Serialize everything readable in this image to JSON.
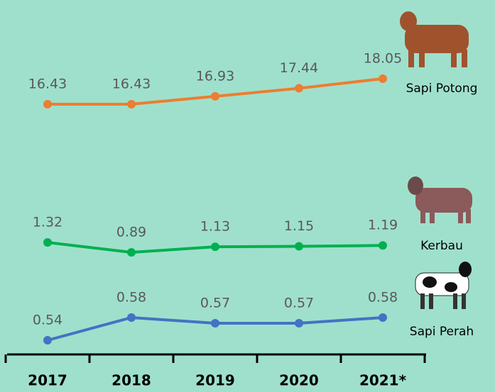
{
  "chart_data": {
    "type": "line",
    "categories": [
      "2017",
      "2018",
      "2019",
      "2020",
      "2021*"
    ],
    "series": [
      {
        "name": "Sapi Potong",
        "color": "#ed7d31",
        "values": [
          16.43,
          16.43,
          16.93,
          17.44,
          18.05
        ]
      },
      {
        "name": "Kerbau",
        "color": "#00b050",
        "values": [
          1.32,
          0.89,
          1.13,
          1.15,
          1.19
        ]
      },
      {
        "name": "Sapi Perah",
        "color": "#4472c4",
        "values": [
          0.54,
          0.58,
          0.57,
          0.57,
          0.58
        ]
      }
    ]
  }
}
